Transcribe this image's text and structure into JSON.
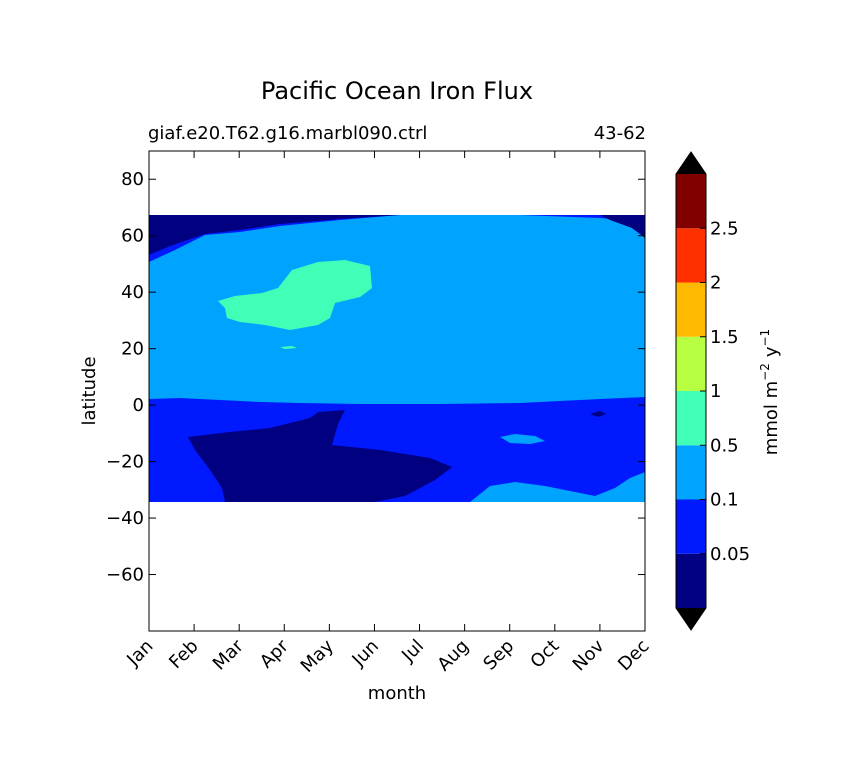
{
  "chart_data": {
    "type": "heatmap",
    "title": "Pacific Ocean Iron Flux",
    "subtitle_left": "giaf.e20.T62.g16.marbl090.ctrl",
    "subtitle_right": "43-62",
    "xlabel": "month",
    "ylabel": "latitude",
    "x_ticks": [
      "Jan",
      "Feb",
      "Mar",
      "Apr",
      "May",
      "Jun",
      "Jul",
      "Aug",
      "Sep",
      "Oct",
      "Nov",
      "Dec"
    ],
    "x_range": [
      1,
      12
    ],
    "y_ticks": [
      80,
      60,
      40,
      20,
      0,
      -20,
      -40,
      -60
    ],
    "y_range": [
      -80,
      90
    ],
    "data_lat_range": [
      -34,
      67
    ],
    "grid": false,
    "colorbar": {
      "label": "mmol m⁻² y⁻¹",
      "label_main": "mmol m",
      "label_exp1": "−2",
      "label_mid": "y",
      "label_exp2": "−1",
      "levels": [
        0.05,
        0.1,
        0.5,
        1,
        1.5,
        2,
        2.5
      ],
      "tick_labels": [
        "0.05",
        "0.1",
        "0.5",
        "1",
        "1.5",
        "2",
        "2.5"
      ],
      "colors": [
        "#000080",
        "#0019ff",
        "#00a4ff",
        "#40ffb7",
        "#b7ff40",
        "#ffb900",
        "#ff3000",
        "#800000"
      ],
      "extend": "both",
      "under_color": "#000000",
      "over_color": "#000000"
    },
    "regions": [
      {
        "level": "0.1–0.5",
        "description_value": "broad band from about 0° to 65° N all year, plus southern patches"
      },
      {
        "level": "0.5–1",
        "description_value": "patch centered about 40° N, late Mar to early Jun"
      },
      {
        "level": "< 0.05",
        "description_value": "south of about −5°, Mar to Jul, and narrow strip near 65° N"
      }
    ]
  }
}
